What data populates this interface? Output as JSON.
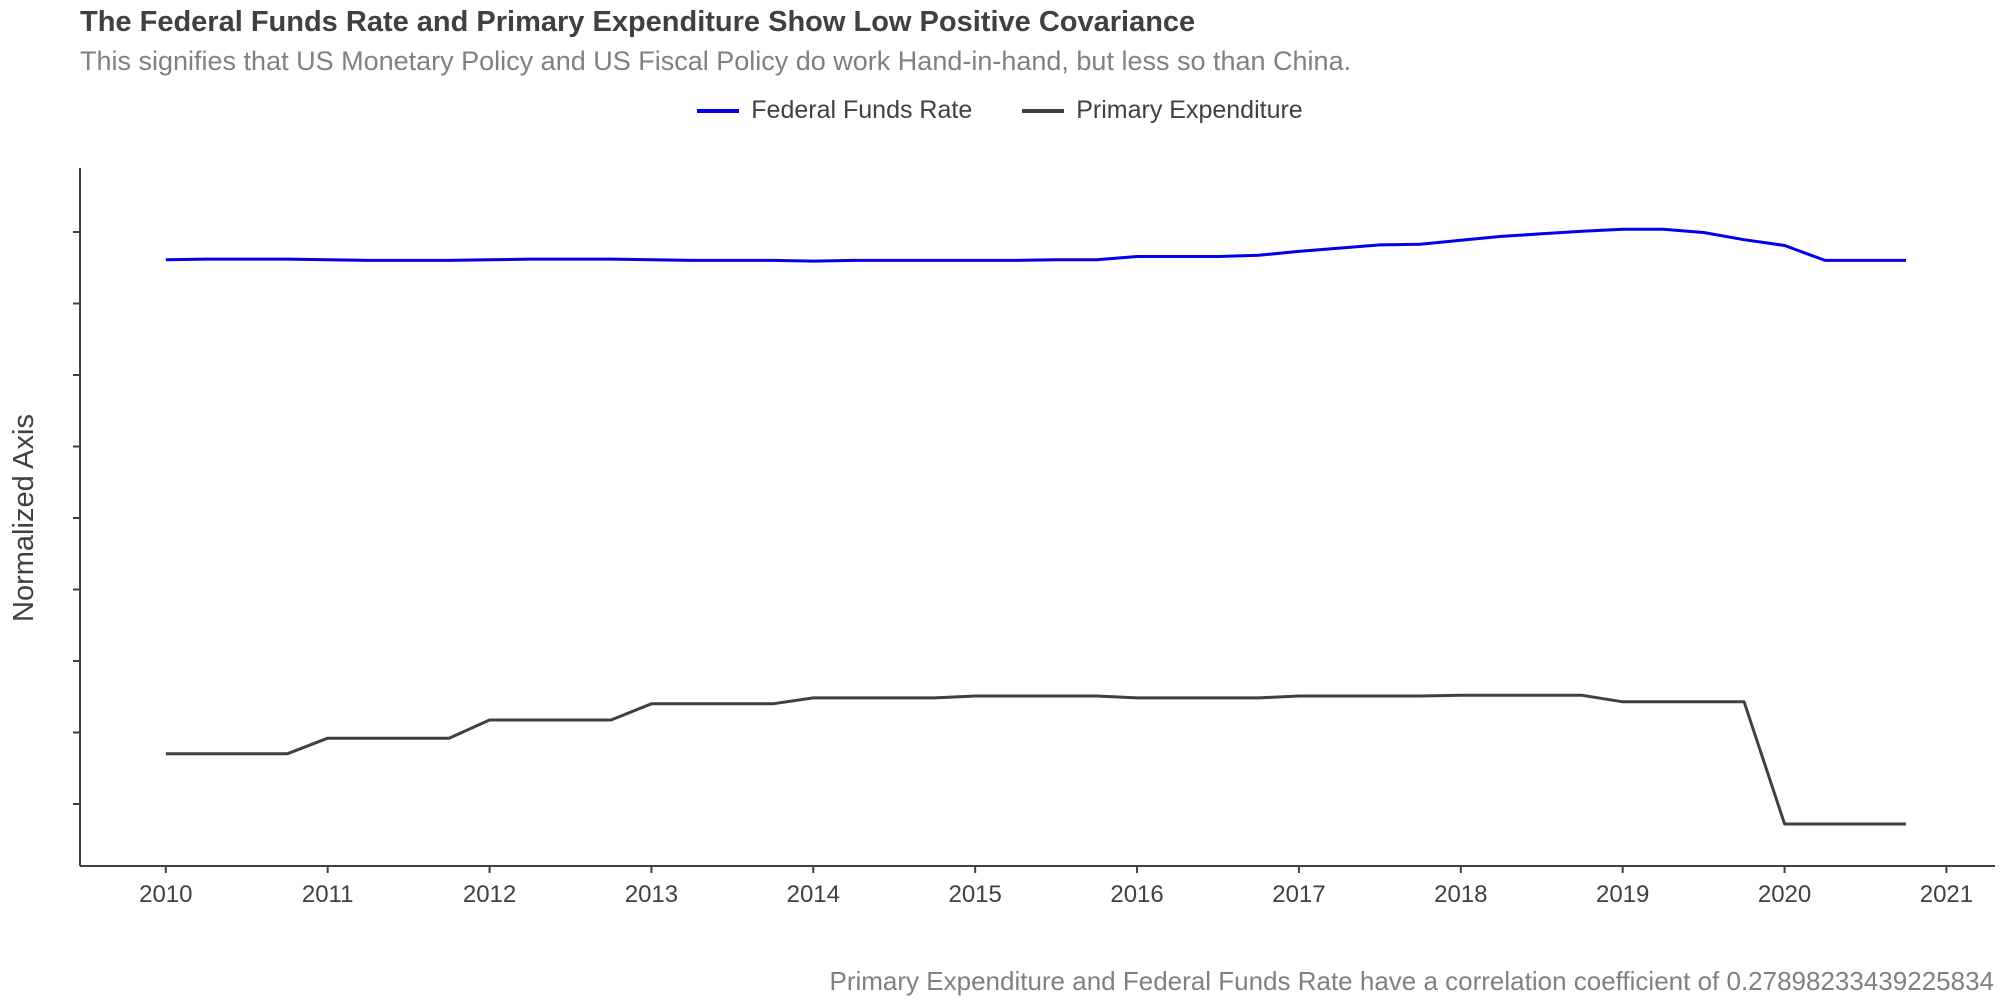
{
  "chart_data": {
    "type": "line",
    "title": "The Federal Funds Rate and Primary Expenditure Show Low Positive Covariance",
    "subtitle": "This signifies that US Monetary Policy and US Fiscal Policy do work Hand-in-hand, but less so than China.",
    "caption": "Primary Expenditure and Federal Funds Rate have a correlation coefficient of 0.27898233439225834",
    "ylabel": "Normalized Axis",
    "xlabel": "",
    "x_ticks": [
      "2010",
      "2011",
      "2012",
      "2013",
      "2014",
      "2015",
      "2016",
      "2017",
      "2018",
      "2019",
      "2020",
      "2021"
    ],
    "x_range": [
      2009.47,
      2021.3
    ],
    "y_range": [
      0,
      1
    ],
    "y_tick_count": 9,
    "y_tick_labels_shown": false,
    "grid": false,
    "legend_position": "top-center",
    "x": [
      2010.0,
      2010.25,
      2010.5,
      2010.75,
      2011.0,
      2011.25,
      2011.5,
      2011.75,
      2012.0,
      2012.25,
      2012.5,
      2012.75,
      2013.0,
      2013.25,
      2013.5,
      2013.75,
      2014.0,
      2014.25,
      2014.5,
      2014.75,
      2015.0,
      2015.25,
      2015.5,
      2015.75,
      2016.0,
      2016.25,
      2016.5,
      2016.75,
      2017.0,
      2017.25,
      2017.5,
      2017.75,
      2018.0,
      2018.25,
      2018.5,
      2018.75,
      2019.0,
      2019.25,
      2019.5,
      2019.75,
      2020.0,
      2020.25,
      2020.5,
      2020.75
    ],
    "series": [
      {
        "name": "Federal Funds Rate",
        "color": "#0000ee",
        "values": [
          0.908,
          0.909,
          0.909,
          0.909,
          0.908,
          0.907,
          0.907,
          0.907,
          0.908,
          0.909,
          0.909,
          0.909,
          0.908,
          0.907,
          0.907,
          0.907,
          0.906,
          0.907,
          0.907,
          0.907,
          0.907,
          0.907,
          0.908,
          0.908,
          0.913,
          0.913,
          0.913,
          0.915,
          0.921,
          0.926,
          0.931,
          0.932,
          0.938,
          0.944,
          0.948,
          0.952,
          0.955,
          0.955,
          0.95,
          0.939,
          0.93,
          0.907,
          0.907,
          0.907
        ]
      },
      {
        "name": "Primary Expenditure",
        "color": "#404040",
        "values": [
          0.148,
          0.148,
          0.148,
          0.148,
          0.172,
          0.172,
          0.172,
          0.172,
          0.2,
          0.2,
          0.2,
          0.2,
          0.225,
          0.225,
          0.225,
          0.225,
          0.234,
          0.234,
          0.234,
          0.234,
          0.237,
          0.237,
          0.237,
          0.237,
          0.234,
          0.234,
          0.234,
          0.234,
          0.237,
          0.237,
          0.237,
          0.237,
          0.238,
          0.238,
          0.238,
          0.238,
          0.228,
          0.228,
          0.228,
          0.228,
          0.04,
          0.04,
          0.04,
          0.04
        ]
      }
    ]
  }
}
